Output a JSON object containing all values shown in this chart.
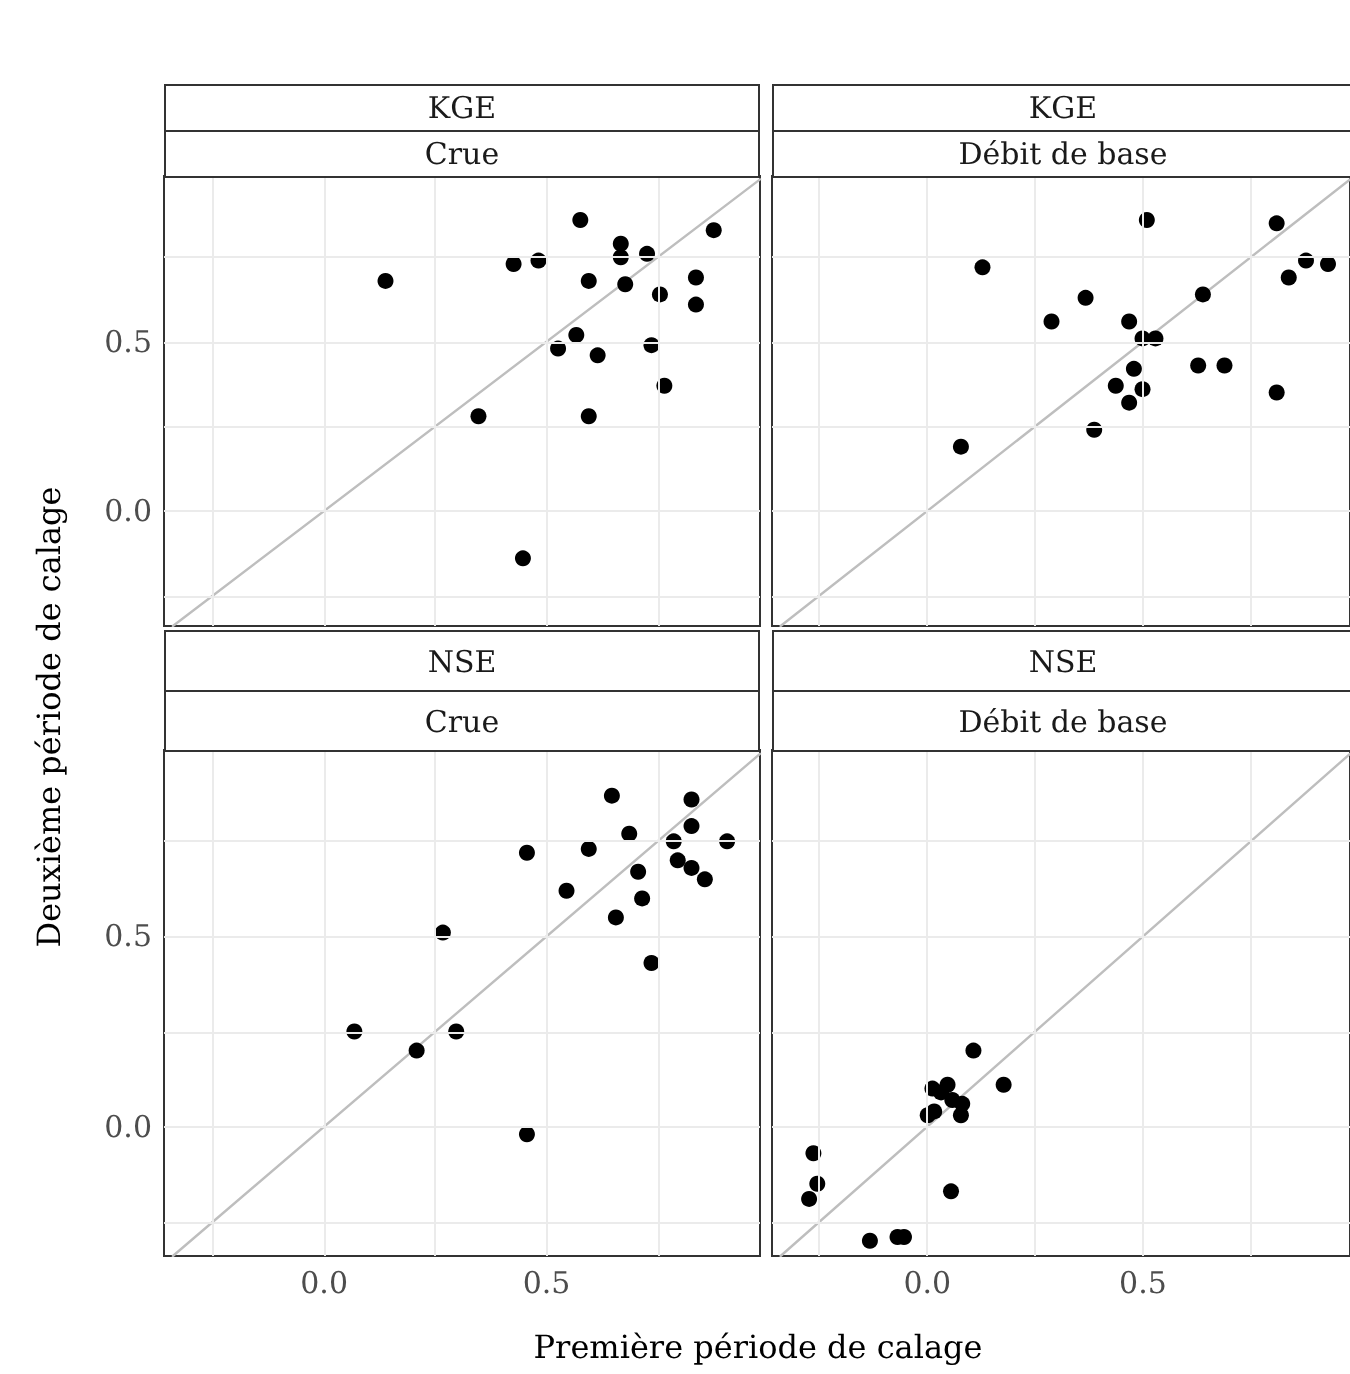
{
  "chart_data": [
    {
      "type": "scatter",
      "title": "KGE",
      "subtitle": "Crue",
      "ylabel": "Deuxième période de calage",
      "xlim": [
        -0.36,
        0.98
      ],
      "ylim": [
        -0.34,
        0.99
      ],
      "xticks": [
        {
          "value": -0.25,
          "label": null
        },
        {
          "value": 0,
          "label": null
        },
        {
          "value": 0.25,
          "label": null
        },
        {
          "value": 0.5,
          "label": null
        },
        {
          "value": 0.75,
          "label": null
        }
      ],
      "yticks": [
        {
          "value": -0.25,
          "label": null
        },
        {
          "value": 0,
          "label": "0.0"
        },
        {
          "value": 0.25,
          "label": null
        },
        {
          "value": 0.5,
          "label": "0.5"
        },
        {
          "value": 0.75,
          "label": null
        }
      ],
      "grid": true,
      "tick_labels": "y",
      "marker": "circle",
      "series": [
        {
          "color": "#000000",
          "x": [
            0.138,
            0.347,
            0.426,
            0.482,
            0.447,
            0.526,
            0.567,
            0.576,
            0.595,
            0.595,
            0.615,
            0.667,
            0.667,
            0.677,
            0.726,
            0.736,
            0.755,
            0.765,
            0.836,
            0.836,
            0.876
          ],
          "values": [
            0.68,
            0.28,
            0.73,
            0.74,
            -0.14,
            0.48,
            0.52,
            0.86,
            0.68,
            0.28,
            0.46,
            0.79,
            0.75,
            0.67,
            0.76,
            0.49,
            0.64,
            0.37,
            0.69,
            0.61,
            0.83
          ]
        },
        {
          "type": "line",
          "color": "#bebebe",
          "marker": "none",
          "x": [
            -0.34,
            0.98
          ],
          "values": [
            -0.34,
            0.98
          ]
        }
      ]
    },
    {
      "type": "scatter",
      "title": "KGE",
      "subtitle": "Débit de base",
      "xlim": [
        -0.36,
        0.98
      ],
      "ylim": [
        -0.34,
        0.99
      ],
      "xticks": [
        {
          "value": -0.25,
          "label": null
        },
        {
          "value": 0,
          "label": null
        },
        {
          "value": 0.25,
          "label": null
        },
        {
          "value": 0.5,
          "label": null
        },
        {
          "value": 0.75,
          "label": null
        }
      ],
      "yticks": [
        {
          "value": -0.25,
          "label": null
        },
        {
          "value": 0,
          "label": null
        },
        {
          "value": 0.25,
          "label": null
        },
        {
          "value": 0.5,
          "label": null
        },
        {
          "value": 0.75,
          "label": null
        }
      ],
      "grid": true,
      "tick_labels": false,
      "marker": "circle",
      "series": [
        {
          "color": "#000000",
          "x": [
            0.128,
            0.078,
            0.288,
            0.367,
            0.387,
            0.437,
            0.468,
            0.468,
            0.479,
            0.499,
            0.499,
            0.529,
            0.509,
            0.628,
            0.639,
            0.689,
            0.81,
            0.81,
            0.838,
            0.878,
            0.929
          ],
          "values": [
            0.72,
            0.19,
            0.56,
            0.63,
            0.24,
            0.37,
            0.56,
            0.32,
            0.42,
            0.51,
            0.36,
            0.51,
            0.86,
            0.43,
            0.64,
            0.43,
            0.85,
            0.35,
            0.69,
            0.74,
            0.73
          ]
        },
        {
          "type": "line",
          "color": "#bebebe",
          "marker": "none",
          "x": [
            -0.34,
            0.98
          ],
          "values": [
            -0.34,
            0.98
          ]
        }
      ]
    },
    {
      "type": "scatter",
      "title": "NSE",
      "subtitle": "Crue",
      "xlabel": "Première période de calage",
      "xlim": [
        -0.36,
        0.98
      ],
      "ylim": [
        -0.34,
        0.99
      ],
      "xticks": [
        {
          "value": -0.25,
          "label": null
        },
        {
          "value": 0,
          "label": "0.0"
        },
        {
          "value": 0.25,
          "label": null
        },
        {
          "value": 0.5,
          "label": "0.5"
        },
        {
          "value": 0.75,
          "label": null
        }
      ],
      "yticks": [
        {
          "value": -0.25,
          "label": null
        },
        {
          "value": 0,
          "label": "0.0"
        },
        {
          "value": 0.25,
          "label": null
        },
        {
          "value": 0.5,
          "label": "0.5"
        },
        {
          "value": 0.75,
          "label": null
        }
      ],
      "grid": true,
      "marker": "circle",
      "series": [
        {
          "color": "#000000",
          "x": [
            0.068,
            0.208,
            0.267,
            0.297,
            0.456,
            0.456,
            0.545,
            0.595,
            0.647,
            0.656,
            0.686,
            0.706,
            0.715,
            0.736,
            0.786,
            0.795,
            0.826,
            0.826,
            0.826,
            0.856,
            0.906
          ],
          "values": [
            0.25,
            0.2,
            0.51,
            0.25,
            0.72,
            -0.02,
            0.62,
            0.73,
            0.87,
            0.55,
            0.77,
            0.67,
            0.6,
            0.43,
            0.75,
            0.7,
            0.86,
            0.79,
            0.68,
            0.65,
            0.75
          ]
        },
        {
          "type": "line",
          "color": "#bebebe",
          "marker": "none",
          "x": [
            -0.34,
            0.98
          ],
          "values": [
            -0.34,
            0.98
          ]
        }
      ]
    },
    {
      "type": "scatter",
      "title": "NSE",
      "subtitle": "Débit de base",
      "xlim": [
        -0.36,
        0.98
      ],
      "ylim": [
        -0.34,
        0.99
      ],
      "xticks": [
        {
          "value": -0.25,
          "label": null
        },
        {
          "value": 0,
          "label": "0.0"
        },
        {
          "value": 0.25,
          "label": null
        },
        {
          "value": 0.5,
          "label": "0.5"
        },
        {
          "value": 0.75,
          "label": null
        }
      ],
      "yticks": [
        {
          "value": -0.25,
          "label": null
        },
        {
          "value": 0,
          "label": null
        },
        {
          "value": 0.25,
          "label": null
        },
        {
          "value": 0.5,
          "label": null
        },
        {
          "value": 0.75,
          "label": null
        }
      ],
      "grid": true,
      "tick_labels": "x",
      "marker": "circle",
      "series": [
        {
          "color": "#000000",
          "x": [
            -0.264,
            -0.255,
            -0.274,
            -0.133,
            -0.069,
            -0.054,
            0.055,
            0.001,
            0.016,
            0.012,
            0.047,
            0.032,
            0.058,
            0.078,
            0.081,
            0.107,
            0.177
          ],
          "values": [
            -0.07,
            -0.15,
            -0.19,
            -0.3,
            -0.29,
            -0.29,
            -0.17,
            0.03,
            0.04,
            0.1,
            0.11,
            0.09,
            0.07,
            0.03,
            0.06,
            0.2,
            0.11
          ]
        },
        {
          "type": "line",
          "color": "#bebebe",
          "marker": "none",
          "x": [
            -0.34,
            0.98
          ],
          "values": [
            -0.34,
            0.98
          ]
        }
      ]
    }
  ]
}
